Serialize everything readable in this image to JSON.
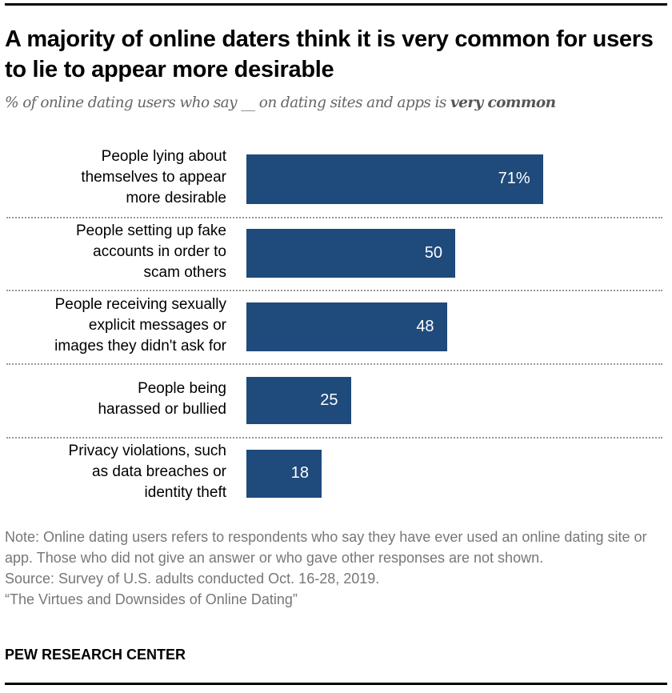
{
  "title": "A majority of online daters think it is very common for users to lie to appear more desirable",
  "subtitle_pre": "% of online dating users who say __ on dating sites and apps is ",
  "subtitle_bold": "very common",
  "chart_data": {
    "type": "bar",
    "orientation": "horizontal",
    "categories": [
      "People lying about themselves to appear more desirable",
      "People setting up fake accounts in order to scam others",
      "People receiving sexually explicit messages or images they didn't ask for",
      "People being harassed or bullied",
      "Privacy violations, such as data breaches or identity theft"
    ],
    "category_lines": [
      [
        "People lying about",
        "themselves to appear",
        "more desirable"
      ],
      [
        "People setting up fake",
        "accounts in order to",
        "scam others"
      ],
      [
        "People receiving sexually",
        "explicit messages or",
        "images they didn't ask for"
      ],
      [
        "People being",
        "harassed or bullied"
      ],
      [
        "Privacy violations, such",
        "as data breaches or",
        "identity theft"
      ]
    ],
    "values": [
      71,
      50,
      48,
      25,
      18
    ],
    "data_labels": [
      "71%",
      "50",
      "48",
      "25",
      "18"
    ],
    "xlim": [
      0,
      100
    ],
    "grid": false,
    "bar_color": "#1f4a7c"
  },
  "notes": [
    "Note: Online dating users refers to respondents who say they have ever used an online dating site or app. Those who did not give an answer or who gave other responses are not shown.",
    "Source: Survey of U.S. adults conducted Oct. 16-28, 2019.",
    "“The Virtues and Downsides of Online Dating”"
  ],
  "brand": "PEW RESEARCH CENTER"
}
